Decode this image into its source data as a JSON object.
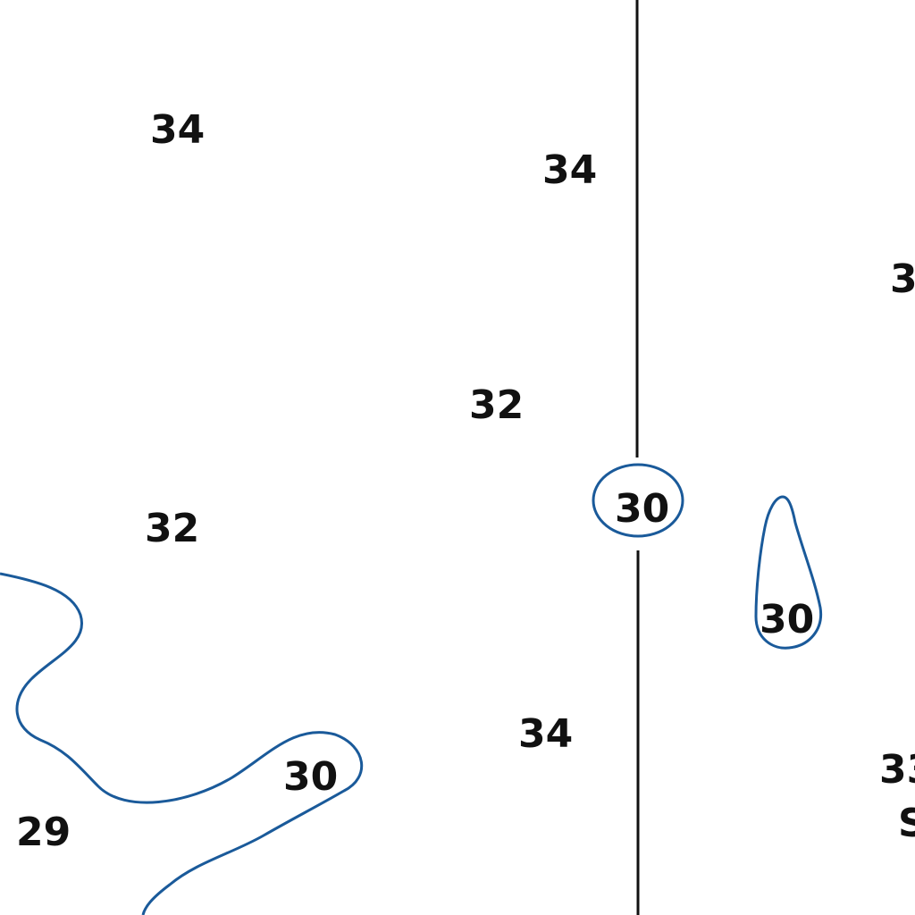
{
  "map": {
    "colors": {
      "background": "#ffffff",
      "contour": "#1a5a9a",
      "meridian": "#111111",
      "text": "#111111"
    },
    "soundings": {
      "s1": "34",
      "s2": "34",
      "s3": "3",
      "s4": "32",
      "s5": "32",
      "s6": "34",
      "s7": "33",
      "s8": "29",
      "s9": "S"
    },
    "contour_labels": {
      "c1": "30",
      "c2": "30",
      "c3": "30"
    }
  }
}
